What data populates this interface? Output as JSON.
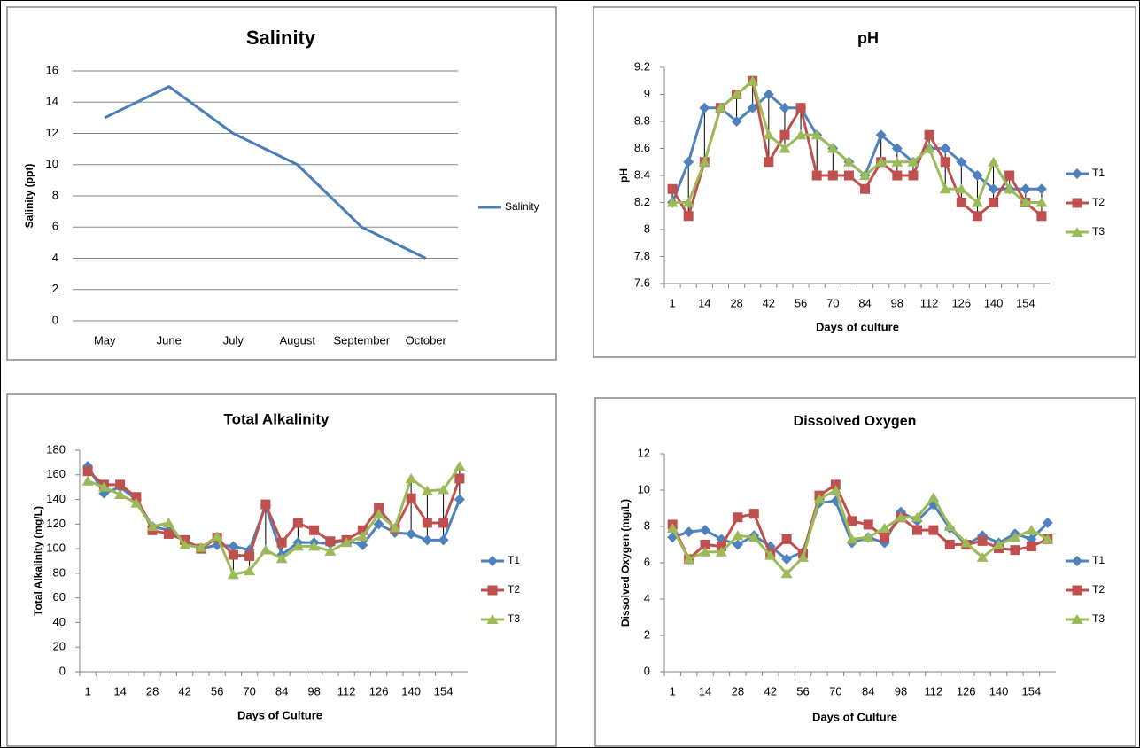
{
  "chart_data": [
    {
      "type": "line",
      "title": "Salinity",
      "y_label": "Salinity (ppt)",
      "categories": [
        "May",
        "June",
        "July",
        "August",
        "September",
        "October"
      ],
      "series": [
        {
          "name": "Salinity",
          "color": "#4a7ebb",
          "marker": "none",
          "values": [
            13,
            15,
            12,
            10,
            6,
            4
          ]
        }
      ],
      "ylim": [
        0,
        16
      ],
      "yticks": [
        0,
        2,
        4,
        6,
        8,
        10,
        12,
        14,
        16
      ],
      "grid": true,
      "drop_lines": false,
      "legend": "right"
    },
    {
      "type": "line",
      "title": "pH",
      "x_label": "Days of culture",
      "y_label": "pH",
      "categories": [
        1,
        null,
        14,
        null,
        28,
        null,
        42,
        null,
        56,
        null,
        70,
        null,
        84,
        null,
        98,
        null,
        112,
        null,
        126,
        null,
        140,
        null,
        154,
        null
      ],
      "series": [
        {
          "name": "T1",
          "color": "#4f81bd",
          "marker": "diamond",
          "values": [
            8.2,
            8.5,
            8.9,
            8.9,
            8.8,
            8.9,
            9.0,
            8.9,
            8.9,
            8.7,
            8.6,
            8.5,
            8.4,
            8.7,
            8.6,
            8.5,
            8.6,
            8.6,
            8.5,
            8.4,
            8.3,
            8.3,
            8.3,
            8.3
          ]
        },
        {
          "name": "T2",
          "color": "#c0504d",
          "marker": "square",
          "values": [
            8.3,
            8.1,
            8.5,
            8.9,
            9.0,
            9.1,
            8.5,
            8.7,
            8.9,
            8.4,
            8.4,
            8.4,
            8.3,
            8.5,
            8.4,
            8.4,
            8.7,
            8.5,
            8.2,
            8.1,
            8.2,
            8.4,
            8.2,
            8.1
          ]
        },
        {
          "name": "T3",
          "color": "#9bbb59",
          "marker": "triangle",
          "values": [
            8.2,
            8.2,
            8.5,
            8.9,
            9.0,
            9.1,
            8.7,
            8.6,
            8.7,
            8.7,
            8.6,
            8.5,
            8.4,
            8.5,
            8.5,
            8.5,
            8.6,
            8.3,
            8.3,
            8.2,
            8.5,
            8.3,
            8.2,
            8.2
          ]
        }
      ],
      "ylim": [
        7.6,
        9.2
      ],
      "yticks": [
        7.6,
        7.8,
        8,
        8.2,
        8.4,
        8.6,
        8.8,
        9,
        9.2
      ],
      "grid": false,
      "drop_lines": true,
      "legend": "right"
    },
    {
      "type": "line",
      "title": "Total Alkalinity",
      "x_label": "Days of Culture",
      "y_label": "Total Alkalinity (mg/L)",
      "categories": [
        1,
        null,
        14,
        null,
        28,
        null,
        42,
        null,
        56,
        null,
        70,
        null,
        84,
        null,
        98,
        null,
        112,
        null,
        126,
        null,
        140,
        null,
        154,
        null
      ],
      "series": [
        {
          "name": "T1",
          "color": "#4f81bd",
          "marker": "diamond",
          "values": [
            167,
            145,
            150,
            140,
            118,
            115,
            107,
            100,
            103,
            102,
            99,
            135,
            95,
            105,
            105,
            104,
            107,
            103,
            120,
            113,
            112,
            107,
            107,
            140
          ]
        },
        {
          "name": "T2",
          "color": "#c0504d",
          "marker": "square",
          "values": [
            163,
            152,
            152,
            142,
            115,
            112,
            107,
            100,
            109,
            95,
            94,
            136,
            105,
            121,
            115,
            106,
            107,
            115,
            133,
            116,
            141,
            121,
            121,
            157
          ]
        },
        {
          "name": "T3",
          "color": "#9bbb59",
          "marker": "triangle",
          "values": [
            155,
            150,
            144,
            137,
            118,
            121,
            103,
            101,
            110,
            79,
            82,
            99,
            92,
            102,
            102,
            98,
            105,
            110,
            128,
            117,
            157,
            147,
            148,
            167
          ]
        }
      ],
      "ylim": [
        0,
        180
      ],
      "yticks": [
        0,
        20,
        40,
        60,
        80,
        100,
        120,
        140,
        160,
        180
      ],
      "grid": false,
      "drop_lines": true,
      "legend": "right"
    },
    {
      "type": "line",
      "title": "Dissolved Oxygen",
      "x_label": "Days of Culture",
      "y_label": "Dissolved Oxygen (mg/L)",
      "categories": [
        1,
        null,
        14,
        null,
        28,
        null,
        42,
        null,
        56,
        null,
        70,
        null,
        84,
        null,
        98,
        null,
        112,
        null,
        126,
        null,
        140,
        null,
        154,
        null
      ],
      "series": [
        {
          "name": "T1",
          "color": "#4f81bd",
          "marker": "diamond",
          "values": [
            7.4,
            7.7,
            7.8,
            7.3,
            7.0,
            7.5,
            6.9,
            6.2,
            6.6,
            9.3,
            9.4,
            7.1,
            7.4,
            7.1,
            8.8,
            8.3,
            9.2,
            7.9,
            7.0,
            7.5,
            7.1,
            7.6,
            7.3,
            8.2
          ]
        },
        {
          "name": "T2",
          "color": "#c0504d",
          "marker": "square",
          "values": [
            8.1,
            6.2,
            7.0,
            6.9,
            8.5,
            8.7,
            6.5,
            7.3,
            6.5,
            9.7,
            10.3,
            8.3,
            8.1,
            7.4,
            8.5,
            7.8,
            7.8,
            7.0,
            7.0,
            7.2,
            6.8,
            6.7,
            6.9,
            7.3
          ]
        },
        {
          "name": "T3",
          "color": "#9bbb59",
          "marker": "triangle",
          "values": [
            7.9,
            6.2,
            6.6,
            6.6,
            7.5,
            7.4,
            6.4,
            5.4,
            6.3,
            9.5,
            10.0,
            7.3,
            7.4,
            7.9,
            8.5,
            8.5,
            9.6,
            8.0,
            7.1,
            6.3,
            7.0,
            7.4,
            7.8,
            7.3
          ]
        }
      ],
      "ylim": [
        0,
        12
      ],
      "yticks": [
        0,
        2,
        4,
        6,
        8,
        10,
        12
      ],
      "grid": false,
      "drop_lines": false,
      "legend": "right"
    }
  ]
}
